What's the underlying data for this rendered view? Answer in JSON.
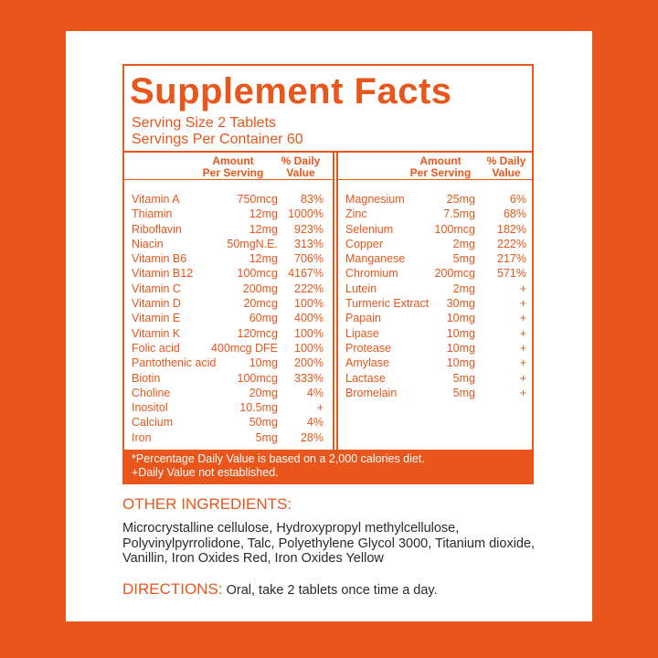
{
  "title": "Supplement Facts",
  "serving_size": "Serving Size 2 Tablets",
  "servings_per_container": "Servings Per Container 60",
  "header": {
    "amount_line1": "Amount",
    "amount_line2": "Per Serving",
    "dv_line1": "% Daily",
    "dv_line2": "Value"
  },
  "left_rows": [
    {
      "name": "Vitamin A",
      "amount": "750mcg",
      "dv": "83%"
    },
    {
      "name": "Thiamin",
      "amount": "12mg",
      "dv": "1000%"
    },
    {
      "name": "Riboflavin",
      "amount": "12mg",
      "dv": "923%"
    },
    {
      "name": "Niacin",
      "amount": "50mgN.E.",
      "dv": "313%"
    },
    {
      "name": "Vitamin B6",
      "amount": "12mg",
      "dv": "706%"
    },
    {
      "name": "Vitamin B12",
      "amount": "100mcg",
      "dv": "4167%"
    },
    {
      "name": "Vitamin C",
      "amount": "200mg",
      "dv": "222%"
    },
    {
      "name": "Vitamin D",
      "amount": "20mcg",
      "dv": "100%"
    },
    {
      "name": "Vitamin E",
      "amount": "60mg",
      "dv": "400%"
    },
    {
      "name": "Vitamin K",
      "amount": "120mcg",
      "dv": "100%"
    },
    {
      "name": "Folic acid",
      "amount": "400mcg DFE",
      "dv": "100%"
    },
    {
      "name": "Pantothenic acid",
      "amount": "10mg",
      "dv": "200%"
    },
    {
      "name": "Biotin",
      "amount": "100mcg",
      "dv": "333%"
    },
    {
      "name": "Choline",
      "amount": "20mg",
      "dv": "4%"
    },
    {
      "name": "Inositol",
      "amount": "10.5mg",
      "dv": "+"
    },
    {
      "name": "Calcium",
      "amount": "50mg",
      "dv": "4%"
    },
    {
      "name": "Iron",
      "amount": "5mg",
      "dv": "28%"
    }
  ],
  "right_rows": [
    {
      "name": "Magnesium",
      "amount": "25mg",
      "dv": "6%"
    },
    {
      "name": "Zinc",
      "amount": "7.5mg",
      "dv": "68%"
    },
    {
      "name": "Selenium",
      "amount": "100mcg",
      "dv": "182%"
    },
    {
      "name": "Copper",
      "amount": "2mg",
      "dv": "222%"
    },
    {
      "name": "Manganese",
      "amount": "5mg",
      "dv": "217%"
    },
    {
      "name": "Chromium",
      "amount": "200mcg",
      "dv": "571%"
    },
    {
      "name": "Lutein",
      "amount": "2mg",
      "dv": "+"
    },
    {
      "name": "Turmeric Extract",
      "amount": "30mg",
      "dv": "+"
    },
    {
      "name": "Papain",
      "amount": "10mg",
      "dv": "+"
    },
    {
      "name": "Lipase",
      "amount": "10mg",
      "dv": "+"
    },
    {
      "name": "Protease",
      "amount": "10mg",
      "dv": "+"
    },
    {
      "name": "Amylase",
      "amount": "10mg",
      "dv": "+"
    },
    {
      "name": "Lactase",
      "amount": "5mg",
      "dv": "+"
    },
    {
      "name": "Bromelain",
      "amount": "5mg",
      "dv": "+"
    }
  ],
  "footnote_line1": "*Percentage Daily Value is based on a 2,000 calories diet.",
  "footnote_line2": "+Daily Value not established.",
  "other_ingredients_heading": "OTHER INGREDIENTS:",
  "other_ingredients_text": "Microcrystalline cellulose, Hydroxypropyl methylcellulose, Polyvinylpyrrolidone, Talc, Polyethylene Glycol 3000, Titanium dioxide, Vanillin, Iron Oxides Red, Iron Oxides Yellow",
  "directions_label": "DIRECTIONS:",
  "directions_text": " Oral, take 2 tablets once time a day.",
  "colors": {
    "accent": "#e8561c",
    "text": "#2a2a2a",
    "card": "#ffffff"
  }
}
